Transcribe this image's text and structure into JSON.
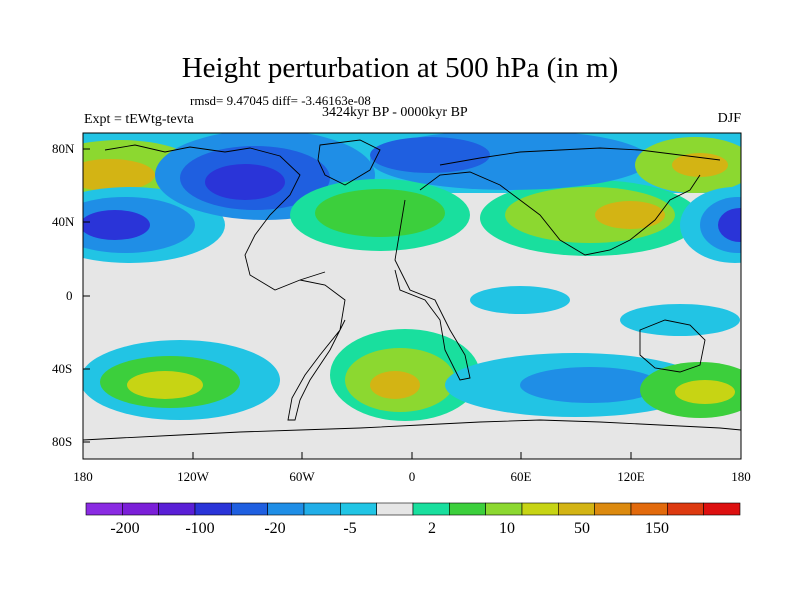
{
  "title": "Height perturbation at 500 hPa (in m)",
  "stats_line": "rmsd= 9.47045 diff= -3.46163e-08",
  "left_label": "Expt = tEWtg-tevta",
  "center_label": "3424kyr BP - 0000kyr BP",
  "right_label": "DJF",
  "lat_ticks": [
    "80N",
    "40N",
    "0",
    "40S",
    "80S"
  ],
  "lon_ticks": [
    "180",
    "120W",
    "60W",
    "0",
    "60E",
    "120E",
    "180"
  ],
  "colorbar": {
    "colors": [
      "#8a2be2",
      "#7b1fd8",
      "#5a1fd6",
      "#2a34d8",
      "#1f5fe0",
      "#1f8ee6",
      "#21aee8",
      "#21c5e5",
      "#e6e6e6",
      "#19df9e",
      "#3ccf3c",
      "#8cd830",
      "#c7d414",
      "#d3b414",
      "#dc8a0f",
      "#e26a0c",
      "#dd3a10",
      "#dd1010"
    ],
    "labels": [
      "-200",
      "-100",
      "-20",
      "-5",
      "2",
      "10",
      "50",
      "150"
    ]
  }
}
